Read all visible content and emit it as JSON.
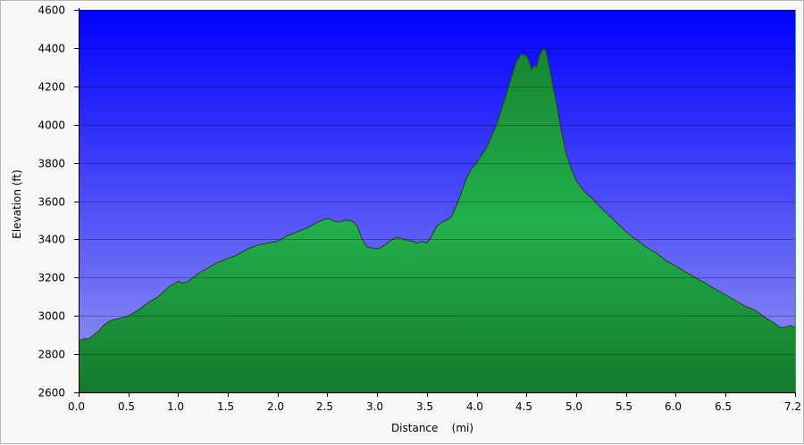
{
  "chart_data": {
    "type": "area",
    "title": "",
    "xlabel": "Distance    (mi)",
    "ylabel": "Elevation (ft)",
    "xlim": [
      0.0,
      7.2
    ],
    "ylim": [
      2600,
      4600
    ],
    "xticks": [
      0.0,
      0.5,
      1.0,
      1.5,
      2.0,
      2.5,
      3.0,
      3.5,
      4.0,
      4.5,
      5.0,
      5.5,
      6.0,
      6.5,
      7.2
    ],
    "xtick_labels": [
      "0.0",
      "0.5",
      "1.0",
      "1.5",
      "2.0",
      "2.5",
      "3.0",
      "3.5",
      "4.0",
      "4.5",
      "5.0",
      "5.5",
      "6.0",
      "6.5",
      "7.2"
    ],
    "yticks": [
      2600,
      2800,
      3000,
      3200,
      3400,
      3600,
      3800,
      4000,
      4200,
      4400,
      4600
    ],
    "ytick_labels": [
      "2600",
      "2800",
      "3000",
      "3200",
      "3400",
      "3600",
      "3800",
      "4000",
      "4200",
      "4400",
      "4600"
    ],
    "grid": true,
    "colors": {
      "sky_top": "#0000ff",
      "sky_bottom": "#9999f0",
      "fill_edge": "#147a2c",
      "fill_mid": "#22b14c",
      "outline": "#2a3a2a"
    },
    "series": [
      {
        "x": [
          0.0,
          0.05,
          0.1,
          0.15,
          0.2,
          0.25,
          0.3,
          0.35,
          0.4,
          0.45,
          0.5,
          0.6,
          0.7,
          0.8,
          0.9,
          1.0,
          1.05,
          1.1,
          1.2,
          1.3,
          1.4,
          1.5,
          1.6,
          1.7,
          1.8,
          1.9,
          2.0,
          2.1,
          2.2,
          2.3,
          2.4,
          2.5,
          2.55,
          2.6,
          2.7,
          2.75,
          2.8,
          2.85,
          2.9,
          2.95,
          3.0,
          3.05,
          3.1,
          3.15,
          3.2,
          3.25,
          3.3,
          3.35,
          3.4,
          3.45,
          3.5,
          3.55,
          3.6,
          3.65,
          3.7,
          3.75,
          3.8,
          3.85,
          3.9,
          3.95,
          4.0,
          4.05,
          4.1,
          4.15,
          4.2,
          4.25,
          4.3,
          4.35,
          4.4,
          4.45,
          4.5,
          4.52,
          4.55,
          4.58,
          4.6,
          4.63,
          4.65,
          4.67,
          4.7,
          4.72,
          4.75,
          4.8,
          4.85,
          4.9,
          4.95,
          5.0,
          5.05,
          5.1,
          5.15,
          5.2,
          5.3,
          5.4,
          5.5,
          5.6,
          5.7,
          5.8,
          5.9,
          6.0,
          6.1,
          6.2,
          6.3,
          6.4,
          6.5,
          6.6,
          6.7,
          6.8,
          6.9,
          7.0,
          7.05,
          7.1,
          7.15,
          7.2
        ],
        "y": [
          2870,
          2880,
          2880,
          2900,
          2920,
          2950,
          2970,
          2980,
          2985,
          2990,
          3000,
          3030,
          3070,
          3100,
          3150,
          3180,
          3170,
          3180,
          3220,
          3250,
          3280,
          3300,
          3320,
          3350,
          3370,
          3380,
          3390,
          3420,
          3440,
          3460,
          3490,
          3510,
          3500,
          3490,
          3500,
          3495,
          3470,
          3400,
          3360,
          3355,
          3350,
          3360,
          3380,
          3400,
          3410,
          3405,
          3395,
          3390,
          3380,
          3390,
          3380,
          3420,
          3470,
          3490,
          3500,
          3520,
          3580,
          3650,
          3720,
          3770,
          3800,
          3840,
          3880,
          3940,
          4000,
          4080,
          4160,
          4250,
          4330,
          4370,
          4360,
          4340,
          4290,
          4310,
          4300,
          4360,
          4380,
          4400,
          4380,
          4330,
          4250,
          4120,
          3970,
          3850,
          3770,
          3710,
          3670,
          3640,
          3620,
          3590,
          3540,
          3490,
          3440,
          3400,
          3360,
          3330,
          3290,
          3260,
          3230,
          3200,
          3170,
          3140,
          3110,
          3080,
          3050,
          3030,
          2990,
          2960,
          2940,
          2940,
          2950,
          2940
        ]
      }
    ]
  }
}
